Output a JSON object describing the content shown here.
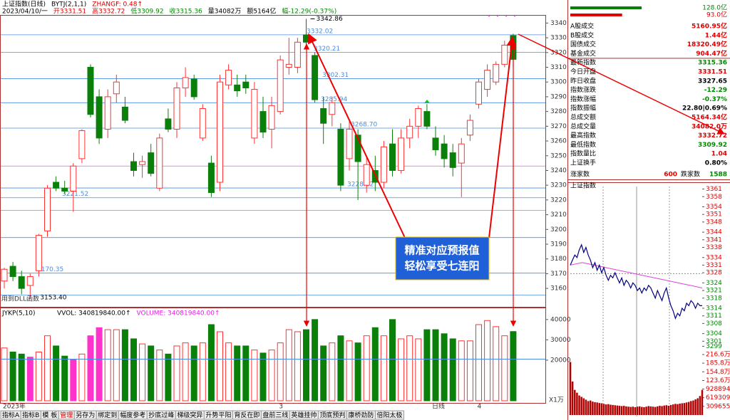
{
  "header": {
    "line1": [
      "上证指数(日线)",
      "BYTJ(2,1,1)",
      "ZHANGF: 0.48↑"
    ],
    "line1_colors": [
      "#000",
      "#000",
      "#c00"
    ],
    "line2": [
      "2023/04/10/一",
      "开3331.51",
      "高3332.72",
      "低3309.92",
      "收3315.36",
      "量34082万",
      "额5164亿",
      "幅-12.29(-0.37%)"
    ],
    "line2_colors": [
      "#000",
      "#d00",
      "#d00",
      "#080",
      "#080",
      "#000",
      "#000",
      "#080"
    ]
  },
  "chart_data": [
    {
      "type": "candlestick",
      "categories": [
        "2023年",
        null,
        null,
        null,
        null,
        null,
        null,
        null,
        null,
        null,
        null,
        null,
        null,
        null,
        null,
        null,
        null,
        null,
        null,
        null,
        null,
        null,
        null,
        null,
        null,
        null,
        null,
        null,
        null,
        null,
        null,
        null,
        "3",
        null,
        null,
        null,
        null,
        null,
        null,
        null,
        null,
        null,
        null,
        null,
        null,
        null,
        null,
        null,
        null,
        null,
        null,
        null,
        null,
        null,
        null,
        "4",
        null,
        null,
        null,
        null
      ],
      "open": [
        3165,
        3175,
        3168,
        3162,
        3172,
        3199,
        3232,
        3228,
        3226,
        3248,
        3310,
        3290,
        3268,
        3292,
        3283,
        3246,
        3244,
        3252,
        3228,
        3275,
        3268,
        3296,
        3302,
        3262,
        3245,
        3232,
        3298,
        3298,
        3300,
        3262,
        3280,
        3268,
        3280,
        3310,
        3310,
        3332,
        3318,
        3282,
        3278,
        3268,
        3248,
        3264,
        3230,
        3240,
        3232,
        3258,
        3240,
        3262,
        3270,
        3280,
        3262,
        3258,
        3252,
        3245,
        3264,
        3285,
        3295,
        3300,
        3312,
        3331.51
      ],
      "high": [
        3174,
        3178,
        3172,
        3170,
        3197,
        3230,
        3236,
        3233,
        3245,
        3268,
        3312,
        3295,
        3295,
        3305,
        3290,
        3252,
        3250,
        3258,
        3265,
        3282,
        3300,
        3310,
        3305,
        3285,
        3250,
        3305,
        3312,
        3305,
        3305,
        3300,
        3290,
        3290,
        3318,
        3330,
        3330,
        3342.86,
        3320,
        3290,
        3290,
        3272,
        3275,
        3268,
        3250,
        3250,
        3260,
        3268,
        3268,
        3275,
        3284,
        3285,
        3270,
        3264,
        3258,
        3262,
        3278,
        3302,
        3312,
        3314,
        3328,
        3332.72
      ],
      "low": [
        3160,
        3165,
        3156,
        3153.4,
        3168,
        3195,
        3226,
        3224,
        3212,
        3245,
        3276,
        3258,
        3262,
        3286,
        3272,
        3236,
        3235,
        3236,
        3226,
        3266,
        3262,
        3290,
        3288,
        3260,
        3222,
        3226,
        3295,
        3290,
        3292,
        3258,
        3262,
        3255,
        3278,
        3305,
        3306,
        3325,
        3286,
        3258,
        3270,
        3226,
        3240,
        3220,
        3225,
        3226,
        3228,
        3236,
        3238,
        3255,
        3262,
        3268,
        3250,
        3242,
        3236,
        3222,
        3260,
        3282,
        3290,
        3298,
        3310,
        3309.92
      ],
      "close": [
        3173,
        3168,
        3160,
        3168,
        3196,
        3228,
        3228,
        3226,
        3243,
        3267,
        3278,
        3262,
        3290,
        3300,
        3274,
        3240,
        3246,
        3238,
        3262,
        3268,
        3296,
        3303,
        3290,
        3282,
        3225,
        3300,
        3308,
        3294,
        3296,
        3295,
        3266,
        3284,
        3315,
        3312,
        3327,
        3327,
        3288,
        3272,
        3286,
        3230,
        3268,
        3246,
        3244,
        3232,
        3256,
        3240,
        3262,
        3270,
        3282,
        3270,
        3254,
        3248,
        3242,
        3258,
        3274,
        3300,
        3308,
        3312,
        3325,
        3315.36
      ],
      "up_color": "#ff3232",
      "down_color": "#0a800a",
      "ylim": [
        3148,
        3345
      ],
      "yticks": [
        3160,
        3170,
        3180,
        3190,
        3200,
        3210,
        3220,
        3230,
        3240,
        3250,
        3260,
        3270,
        3280,
        3290,
        3300,
        3310,
        3320,
        3330,
        3340
      ],
      "levels": [
        3332.02,
        3320.21,
        3302.31,
        3285.94,
        {
          "value": 3268.7,
          "label": "3268.70"
        },
        3228.12,
        3221.52,
        3170.35
      ],
      "level_color": "#4a8ee0",
      "plain_levels": [
        3194.5,
        3155.5
      ],
      "pink_levels": [
        3243,
        3213
      ],
      "pink_color": "#e060e0",
      "low_label": "3153.40",
      "dll_note": "用到DLL函数"
    },
    {
      "type": "bar",
      "title": "JYKP(5,10)",
      "legend": [
        "VVOL: 340819840.00↑",
        "VOLUME: 340819840.00↑"
      ],
      "legend_colors": [
        "#000",
        "#e020e0"
      ],
      "values": [
        26000,
        24000,
        23000,
        21500,
        24000,
        32000,
        27000,
        22000,
        20500,
        23000,
        32000,
        36000,
        35000,
        35000,
        35000,
        30500,
        28000,
        27000,
        25000,
        23000,
        27000,
        28500,
        27000,
        28500,
        37500,
        34000,
        28500,
        27000,
        27000,
        25000,
        23500,
        25000,
        28500,
        35000,
        34000,
        35000,
        40000,
        27000,
        28500,
        32000,
        29500,
        28500,
        32000,
        36000,
        32000,
        40000,
        30500,
        32000,
        30500,
        35000,
        35000,
        33000,
        30500,
        29500,
        29500,
        37500,
        39500,
        36500,
        32000,
        34082
      ],
      "colors": [
        "#ff3232",
        "#0a800a",
        "#0a800a",
        "#ff33cc",
        "#ff3232",
        "#ff3232",
        "#0a800a",
        "#0a800a",
        "#ff33cc",
        "#ff3232",
        "#ff33cc",
        "#ff33cc",
        "#ff3232",
        "#ff3232",
        "#0a800a",
        "#0a800a",
        "#ff3232",
        "#0a800a",
        "#ff3232",
        "#0a800a",
        "#ff3232",
        "#ff3232",
        "#0a800a",
        "#ff3232",
        "#0a800a",
        "#ff3232",
        "#ff3232",
        "#0a800a",
        "#0a800a",
        "#ff3232",
        "#0a800a",
        "#ff3232",
        "#ff3232",
        "#ff3232",
        "#ff3232",
        "#0a800a",
        "#0a800a",
        "#0a800a",
        "#ff3232",
        "#0a800a",
        "#ff3232",
        "#0a800a",
        "#ff3232",
        "#0a800a",
        "#ff3232",
        "#0a800a",
        "#ff3232",
        "#ff3232",
        "#ff3232",
        "#0a800a",
        "#0a800a",
        "#0a800a",
        "#0a800a",
        "#ff3232",
        "#ff3232",
        "#ff3232",
        "#ff3232",
        "#ff3232",
        "#ff3232",
        "#0a800a"
      ],
      "hollow_color": "#ff3232",
      "ylim": [
        0,
        41000
      ],
      "yticks": [
        20000,
        30000,
        40000
      ],
      "unit_label": "X1万",
      "ref_line": 20500,
      "ref_color": "#4a8ee0",
      "period_label": "日线"
    },
    {
      "type": "line",
      "title": "上证指数",
      "color": "#000080",
      "avg_color": "#e040e0",
      "base": 3327.65,
      "values": [
        3331,
        3333,
        3335,
        3334,
        3337,
        3339,
        3336,
        3338,
        3335,
        3333,
        3330,
        3332,
        3329,
        3331,
        3328,
        3330,
        3327,
        3325,
        3327,
        3326,
        3328,
        3326,
        3324,
        3326,
        3323,
        3325,
        3324,
        3322,
        3324,
        3323,
        3321,
        3322,
        3320,
        3322,
        3321,
        3323,
        3322,
        3320,
        3318,
        3321,
        3319,
        3317,
        3320,
        3322,
        3318,
        3315,
        3313,
        3310,
        3312,
        3311,
        3314,
        3313,
        3316,
        3315,
        3317,
        3316,
        3314,
        3316,
        3315,
        3315
      ],
      "avg_values": [
        3331,
        3332,
        3331,
        3330,
        3329,
        3328,
        3327,
        3326,
        3325,
        3324,
        3323,
        3322
      ],
      "ylim": [
        3298,
        3362
      ],
      "yticks": [
        3361,
        3358,
        3354,
        3351,
        3348,
        3344,
        3341,
        3338,
        3334,
        3331,
        3328,
        3324,
        3321,
        3318,
        3314,
        3311,
        3308,
        3304,
        3301,
        3299
      ],
      "volume": {
        "color": "#b00000",
        "ylim": [
          0,
          2320000
        ],
        "yticks": [
          {
            "value": 2166000,
            "label": "216.6万"
          },
          {
            "value": 1858000,
            "label": "185.8万"
          },
          {
            "value": 1548000,
            "label": "154.8万"
          },
          {
            "value": 1236000,
            "label": "123.6万"
          },
          928894,
          619309,
          309655
        ],
        "values": [
          1900000,
          1200000,
          900000,
          800000,
          700000,
          650000,
          600000,
          550000,
          500000,
          520000,
          480000,
          460000,
          450000,
          430000,
          420000,
          400000,
          380000,
          390000,
          370000,
          360000,
          350000,
          340000,
          330000,
          320000,
          330000,
          310000,
          300000,
          290000,
          300000,
          280000,
          300000,
          310000,
          290000,
          280000,
          300000,
          320000,
          310000,
          300000,
          290000,
          310000,
          330000,
          320000,
          340000,
          350000,
          330000,
          360000,
          380000,
          400000,
          390000,
          410000,
          420000,
          430000,
          450000,
          470000,
          500000,
          520000,
          560000,
          600000,
          680000,
          900000
        ]
      }
    }
  ],
  "summary": {
    "bars": [
      {
        "value": 128.0,
        "label": "128.0亿",
        "color": "#0a800a"
      },
      {
        "value": 93.0,
        "label": "93.0亿",
        "color": "#e00000"
      }
    ],
    "rows": [
      [
        "A股成交",
        "5160.95亿"
      ],
      [
        "B股成交",
        "1.44亿"
      ],
      [
        "国债成交",
        "18320.49亿"
      ],
      [
        "基金成交",
        "904.47亿"
      ],
      [
        "最新指数",
        "3315.36"
      ],
      [
        "今日开盘",
        "3331.51"
      ],
      [
        "昨日收盘",
        "3327.65"
      ],
      [
        "指数涨跌",
        "-12.29"
      ],
      [
        "指数涨幅",
        "-0.37%"
      ],
      [
        "指数振幅",
        "22.80|0.69%"
      ],
      [
        "总成交额",
        "5164.34亿"
      ],
      [
        "总成交量",
        "34082.0万"
      ],
      [
        "最高指数",
        "3332.72"
      ],
      [
        "最低指数",
        "3309.92"
      ],
      [
        "指数量比",
        "1.04"
      ],
      [
        "上证换手",
        "0.80%"
      ]
    ],
    "value_colors": [
      "#d00",
      "#d00",
      "#d00",
      "#d00",
      "#080",
      "#d00",
      "#000",
      "#080",
      "#080",
      "#000",
      "#d00",
      "#d00",
      "#d00",
      "#080",
      "#d00",
      "#000"
    ],
    "breadth": [
      "涨家数",
      600,
      "跌家数",
      1588
    ]
  },
  "callout": [
    "精准对应预报值",
    "轻松享受七连阳"
  ],
  "tabs": [
    "指标A",
    "指标B",
    "模 板",
    "管理",
    "另存为",
    "绑定到",
    "幅度参考",
    "抄底过峰",
    "梯级突异",
    "升势平阳",
    "背反在即",
    "盘前三线",
    "英雄挂帅",
    "顶底预判",
    "康桥劲防",
    "倍阳太极"
  ]
}
